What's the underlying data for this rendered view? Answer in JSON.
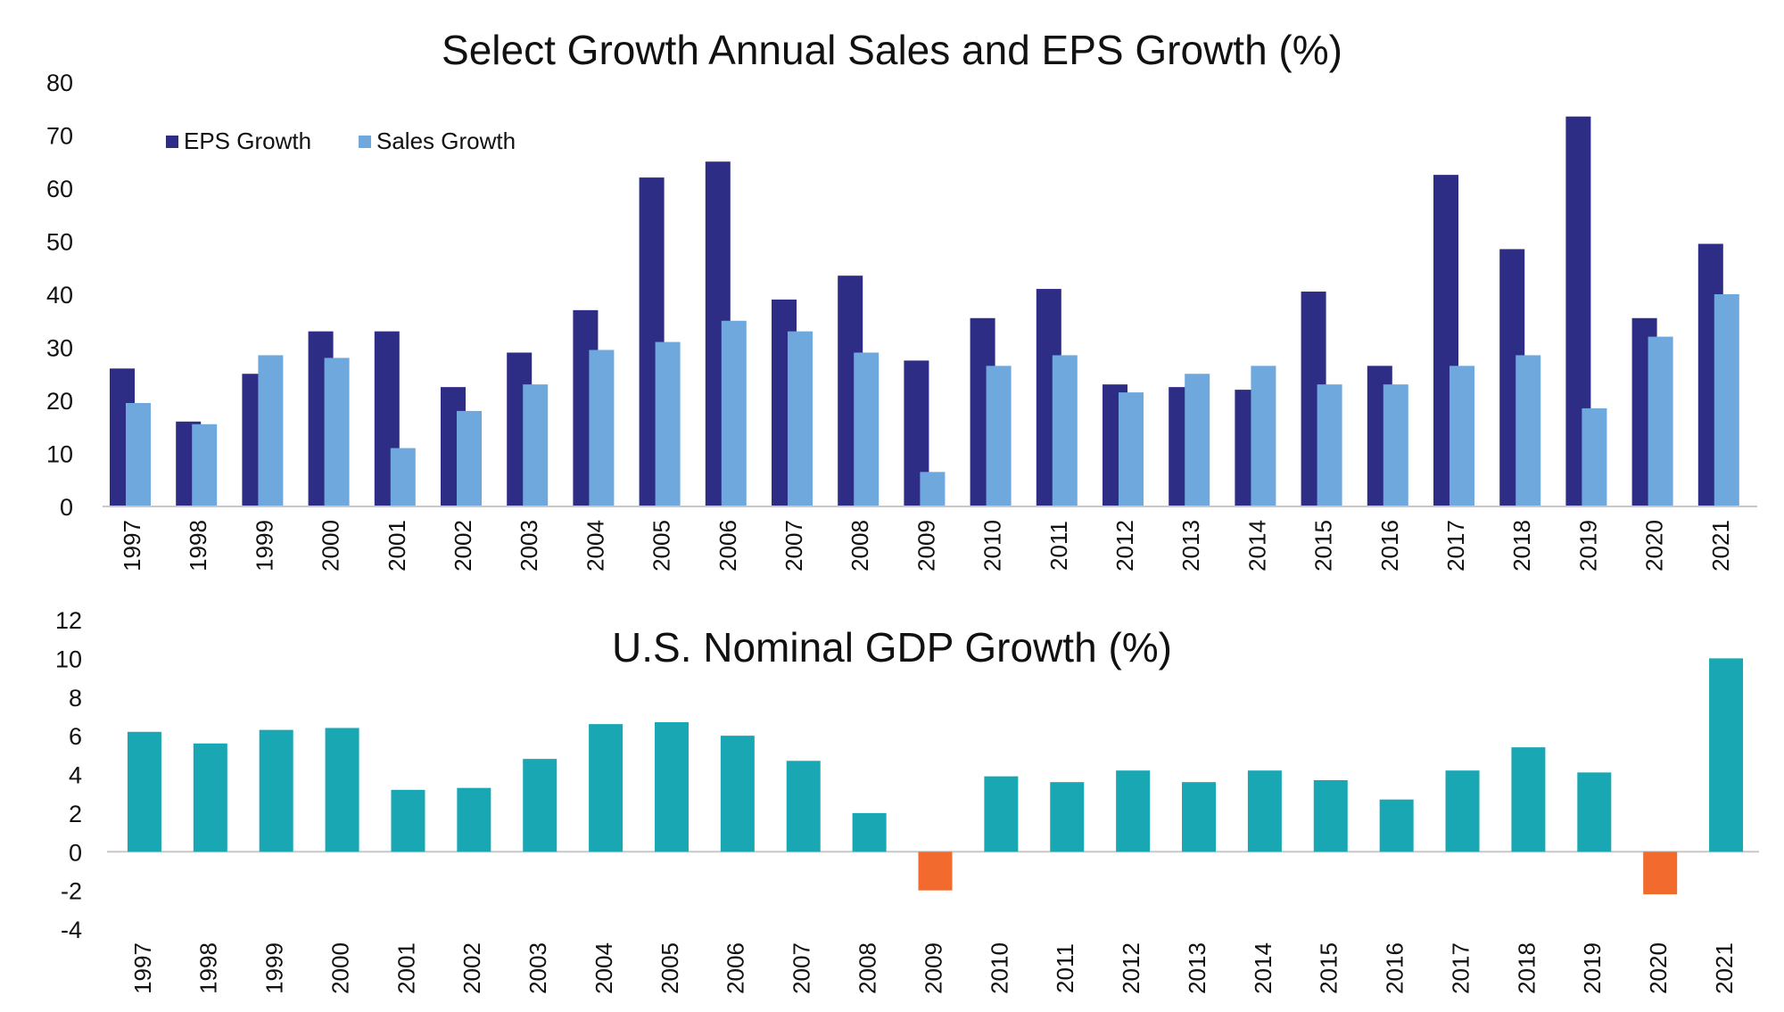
{
  "chart_data": [
    {
      "type": "bar",
      "title": "Select Growth Annual Sales and EPS Growth (%)",
      "xlabel": "",
      "ylabel": "",
      "ylim": [
        0,
        80
      ],
      "yticks": [
        0,
        10,
        20,
        30,
        40,
        50,
        60,
        70,
        80
      ],
      "grid": false,
      "legend": "top-left",
      "categories": [
        "1997",
        "1998",
        "1999",
        "2000",
        "2001",
        "2002",
        "2003",
        "2004",
        "2005",
        "2006",
        "2007",
        "2008",
        "2009",
        "2010",
        "2011",
        "2012",
        "2013",
        "2014",
        "2015",
        "2016",
        "2017",
        "2018",
        "2019",
        "2020",
        "2021"
      ],
      "series": [
        {
          "name": "EPS Growth",
          "color": "#2e2d86",
          "values": [
            26,
            16,
            25,
            33,
            33,
            22.5,
            29,
            37,
            62,
            65,
            39,
            43.5,
            27.5,
            35.5,
            41,
            23,
            22.5,
            22,
            40.5,
            26.5,
            62.5,
            48.5,
            73.5,
            35.5,
            49.5
          ]
        },
        {
          "name": "Sales Growth",
          "color": "#6fa8dc",
          "values": [
            19.5,
            15.5,
            28.5,
            28,
            11,
            18,
            23,
            29.5,
            31,
            35,
            33,
            29,
            6.5,
            26.5,
            28.5,
            21.5,
            25,
            26.5,
            23,
            23,
            26.5,
            28.5,
            18.5,
            32,
            40
          ]
        }
      ]
    },
    {
      "type": "bar",
      "title": "U.S. Nominal GDP Growth (%)",
      "xlabel": "",
      "ylabel": "",
      "ylim": [
        -4,
        12
      ],
      "yticks": [
        -4,
        -2,
        0,
        2,
        4,
        6,
        8,
        10,
        12
      ],
      "grid": false,
      "categories": [
        "1997",
        "1998",
        "1999",
        "2000",
        "2001",
        "2002",
        "2003",
        "2004",
        "2005",
        "2006",
        "2007",
        "2008",
        "2009",
        "2010",
        "2011",
        "2012",
        "2013",
        "2014",
        "2015",
        "2016",
        "2017",
        "2018",
        "2019",
        "2020",
        "2021"
      ],
      "positive_color": "#1aa7b4",
      "negative_color": "#f26a2e",
      "series": [
        {
          "values": [
            6.2,
            5.6,
            6.3,
            6.4,
            3.2,
            3.3,
            4.8,
            6.6,
            6.7,
            6.0,
            4.7,
            2.0,
            -2.0,
            3.9,
            3.6,
            4.2,
            3.6,
            4.2,
            3.7,
            2.7,
            4.2,
            5.4,
            4.1,
            -2.2,
            10.0
          ]
        }
      ]
    }
  ]
}
